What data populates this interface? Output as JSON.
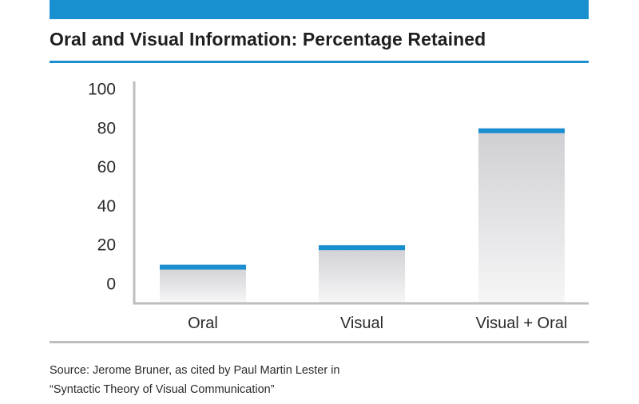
{
  "title": "Oral and Visual Information: Percentage Retained",
  "source": {
    "line1": "Source: Jerome Bruner, as cited by Paul Martin Lester in",
    "line2": "“Syntactic Theory of Visual Communication”"
  },
  "colors": {
    "accent": "#1a8fd0",
    "bar_top": "#cfcfd3",
    "bar_bottom": "#f6f6f7",
    "axis": "#bdbdbd"
  },
  "chart_data": {
    "type": "bar",
    "title": "Oral and Visual Information: Percentage Retained",
    "categories": [
      "Oral",
      "Visual",
      "Visual + Oral"
    ],
    "values": [
      10,
      20,
      80
    ],
    "yticks": [
      "0",
      "20",
      "40",
      "60",
      "80",
      "100"
    ],
    "ylim": [
      0,
      100
    ],
    "xlabel": "",
    "ylabel": "",
    "grid": false,
    "legend": "none"
  }
}
